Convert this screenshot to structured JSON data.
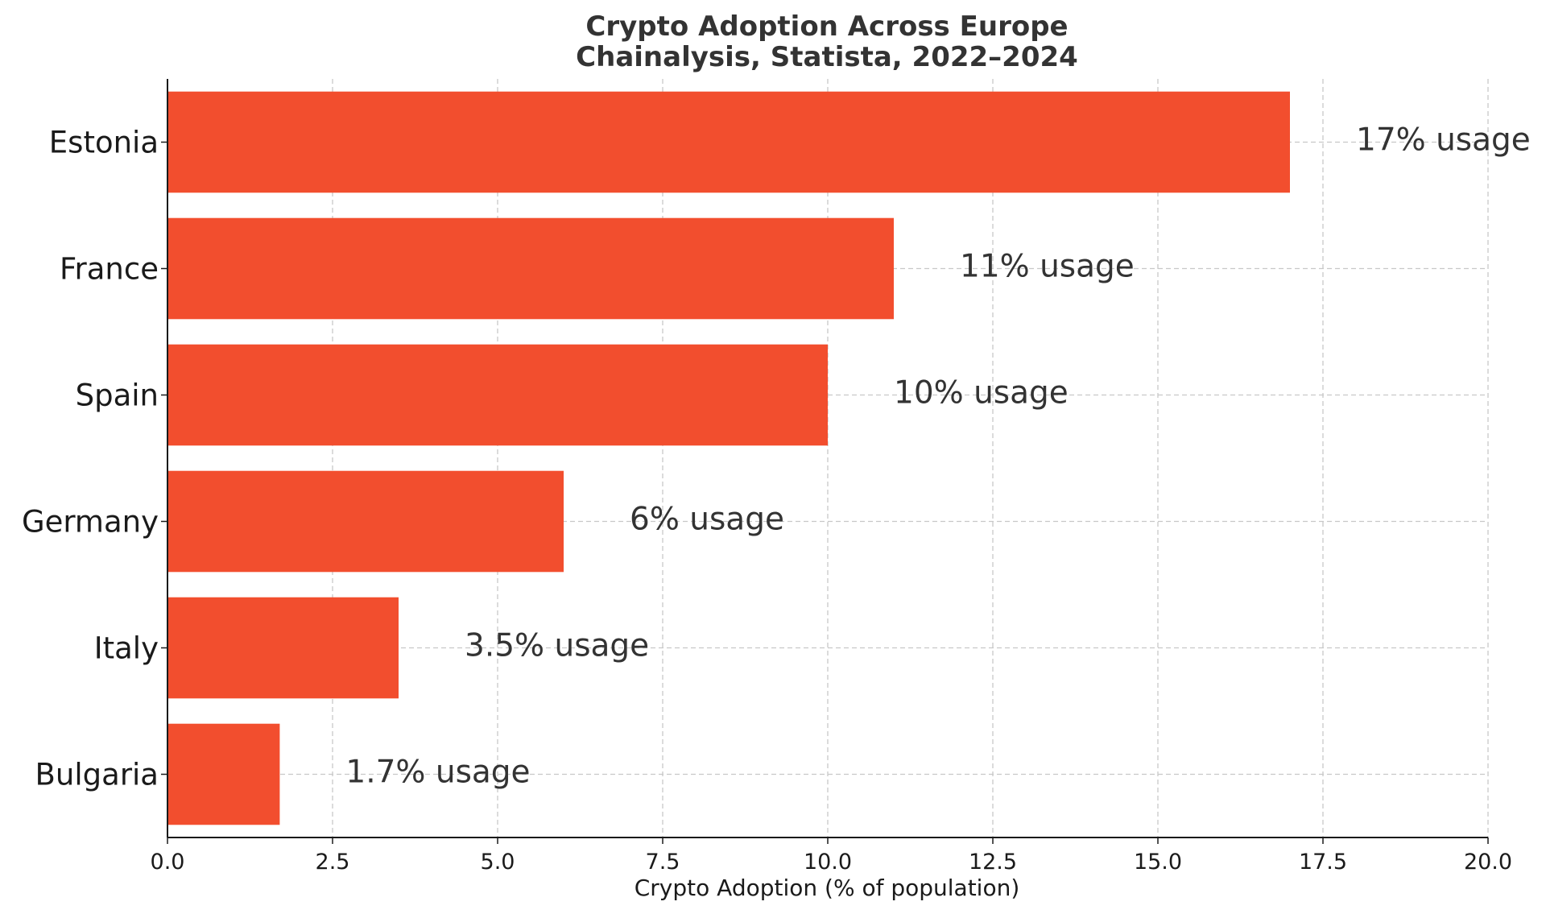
{
  "chart_data": {
    "type": "bar",
    "orientation": "horizontal",
    "title": "Crypto Adoption Across Europe",
    "subtitle": "Chainalysis, Statista, 2022–2024",
    "categories": [
      "Estonia",
      "France",
      "Spain",
      "Germany",
      "Italy",
      "Bulgaria"
    ],
    "values": [
      17,
      11,
      10,
      6,
      3.5,
      1.7
    ],
    "data_labels": [
      "17% usage",
      "11% usage",
      "10% usage",
      "6% usage",
      "3.5% usage",
      "1.7% usage"
    ],
    "xlabel": "Crypto Adoption (% of population)",
    "ylabel": "",
    "xlim": [
      0,
      20
    ],
    "xticks": [
      "0.0",
      "2.5",
      "5.0",
      "7.5",
      "10.0",
      "12.5",
      "15.0",
      "17.5",
      "20.0"
    ],
    "grid": true,
    "bar_color": "#f24e2e",
    "grid_color": "#c8c8c8",
    "axis_color": "#1a1a1a"
  }
}
